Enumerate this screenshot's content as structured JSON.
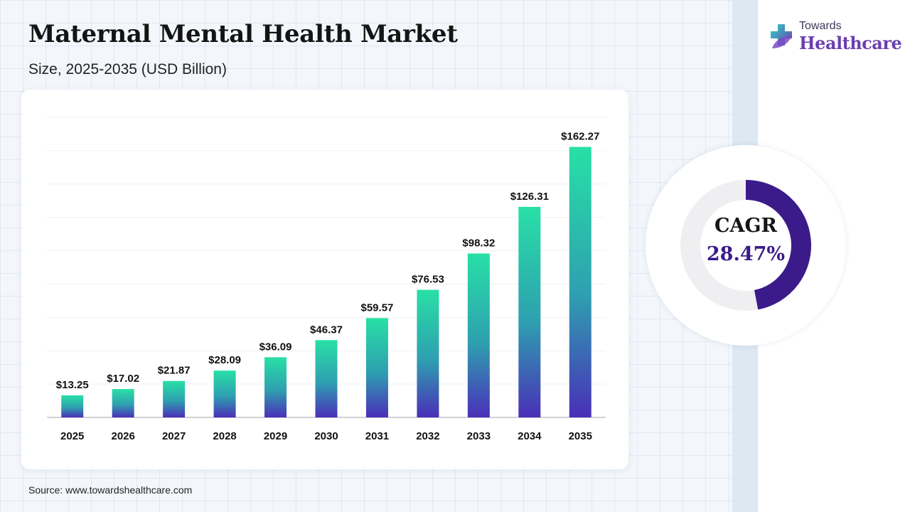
{
  "header": {
    "title": "Maternal Mental Health Market",
    "subtitle": "Size, 2025-2035 (USD Billion)"
  },
  "brand": {
    "line1": "Towards",
    "line2": "Healthcare",
    "icon": "medical-cross-leaf-icon"
  },
  "cagr": {
    "label": "CAGR",
    "value": "28.47%",
    "ring_fill_fraction": 0.47
  },
  "source": "Source: www.towardshealthcare.com",
  "colors": {
    "bar_top": "#28e0a6",
    "bar_bottom": "#4a2fb8",
    "ring_track": "#efeff1",
    "ring_fill": "#3b1b8a",
    "brand_purple": "#6a3fb0"
  },
  "chart_data": {
    "type": "bar",
    "title": "Maternal Mental Health Market",
    "subtitle": "Size, 2025-2035 (USD Billion)",
    "categories": [
      "2025",
      "2026",
      "2027",
      "2028",
      "2029",
      "2030",
      "2031",
      "2032",
      "2033",
      "2034",
      "2035"
    ],
    "values": [
      13.25,
      17.02,
      21.87,
      28.09,
      36.09,
      46.37,
      59.57,
      76.53,
      98.32,
      126.31,
      162.27
    ],
    "value_labels": [
      "$13.25",
      "$17.02",
      "$21.87",
      "$28.09",
      "$36.09",
      "$46.37",
      "$59.57",
      "$76.53",
      "$98.32",
      "$126.31",
      "$162.27"
    ],
    "xlabel": "",
    "ylabel": "",
    "ylim": [
      0,
      180
    ],
    "grid": true,
    "legend": "none"
  }
}
